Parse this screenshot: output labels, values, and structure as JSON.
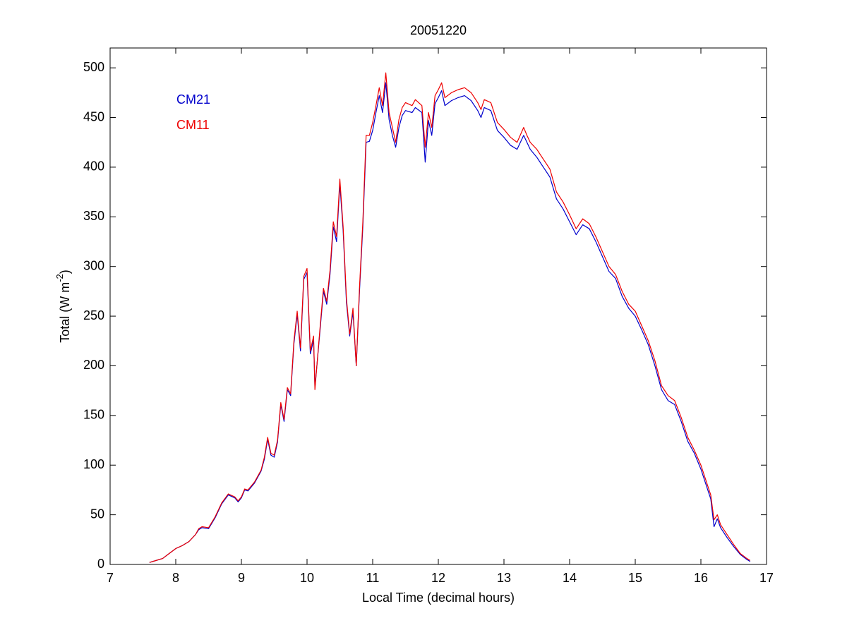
{
  "chart_data": {
    "type": "line",
    "title": "20051220",
    "xlabel": "Local Time (decimal hours)",
    "ylabel": [
      "Total (W m",
      "-2",
      ")"
    ],
    "x": [
      7.6,
      7.7,
      7.8,
      7.9,
      8.0,
      8.1,
      8.2,
      8.3,
      8.35,
      8.4,
      8.5,
      8.6,
      8.7,
      8.8,
      8.9,
      8.95,
      9.0,
      9.05,
      9.1,
      9.2,
      9.3,
      9.35,
      9.4,
      9.45,
      9.5,
      9.55,
      9.6,
      9.65,
      9.7,
      9.75,
      9.8,
      9.85,
      9.9,
      9.95,
      10.0,
      10.05,
      10.1,
      10.12,
      10.2,
      10.25,
      10.3,
      10.35,
      10.4,
      10.45,
      10.5,
      10.55,
      10.6,
      10.65,
      10.7,
      10.75,
      10.8,
      10.85,
      10.9,
      10.95,
      11.0,
      11.05,
      11.1,
      11.15,
      11.2,
      11.25,
      11.3,
      11.35,
      11.4,
      11.45,
      11.5,
      11.6,
      11.65,
      11.75,
      11.8,
      11.85,
      11.9,
      11.95,
      12.0,
      12.05,
      12.1,
      12.2,
      12.3,
      12.4,
      12.5,
      12.6,
      12.65,
      12.7,
      12.8,
      12.9,
      13.0,
      13.1,
      13.2,
      13.3,
      13.35,
      13.4,
      13.5,
      13.6,
      13.7,
      13.8,
      13.9,
      14.0,
      14.1,
      14.2,
      14.3,
      14.4,
      14.5,
      14.6,
      14.7,
      14.8,
      14.9,
      15.0,
      15.1,
      15.2,
      15.3,
      15.4,
      15.5,
      15.6,
      15.7,
      15.8,
      15.9,
      16.0,
      16.1,
      16.15,
      16.2,
      16.25,
      16.3,
      16.4,
      16.5,
      16.6,
      16.7,
      16.75
    ],
    "series": [
      {
        "name": "CM21",
        "color": "#0000cc",
        "values": [
          2,
          4,
          6,
          11,
          16,
          19,
          23,
          30,
          35,
          37,
          36,
          47,
          61,
          70,
          67,
          63,
          67,
          75,
          74,
          82,
          94,
          106,
          126,
          110,
          108,
          123,
          161,
          144,
          176,
          170,
          222,
          252,
          215,
          287,
          294,
          212,
          226,
          178,
          237,
          275,
          262,
          292,
          340,
          325,
          383,
          336,
          264,
          230,
          254,
          200,
          276,
          340,
          425,
          426,
          437,
          455,
          472,
          455,
          485,
          448,
          432,
          420,
          440,
          452,
          457,
          455,
          460,
          455,
          405,
          447,
          432,
          464,
          470,
          477,
          462,
          467,
          470,
          472,
          467,
          457,
          450,
          460,
          457,
          437,
          430,
          422,
          418,
          432,
          425,
          418,
          410,
          400,
          390,
          368,
          358,
          345,
          332,
          342,
          338,
          325,
          310,
          295,
          288,
          270,
          258,
          250,
          236,
          221,
          200,
          176,
          165,
          161,
          144,
          124,
          112,
          96,
          76,
          66,
          38,
          46,
          37,
          27,
          18,
          10,
          5,
          3
        ]
      },
      {
        "name": "CM11",
        "color": "#ee0000",
        "values": [
          2,
          4,
          6,
          11,
          16,
          19,
          23,
          30,
          36,
          38,
          37,
          48,
          62,
          71,
          68,
          64,
          68,
          76,
          75,
          83,
          95,
          108,
          128,
          112,
          110,
          125,
          163,
          146,
          178,
          172,
          225,
          255,
          218,
          290,
          298,
          215,
          230,
          176,
          240,
          278,
          265,
          296,
          345,
          330,
          388,
          340,
          268,
          232,
          258,
          200,
          280,
          345,
          432,
          432,
          445,
          462,
          480,
          462,
          495,
          455,
          440,
          425,
          448,
          460,
          465,
          462,
          468,
          462,
          420,
          455,
          440,
          472,
          478,
          485,
          470,
          475,
          478,
          480,
          475,
          465,
          458,
          468,
          465,
          445,
          438,
          430,
          425,
          440,
          432,
          425,
          418,
          408,
          398,
          375,
          365,
          352,
          338,
          348,
          343,
          330,
          315,
          300,
          292,
          275,
          262,
          255,
          240,
          225,
          205,
          180,
          170,
          165,
          148,
          128,
          115,
          100,
          80,
          70,
          45,
          50,
          40,
          30,
          20,
          11,
          6,
          4
        ]
      }
    ],
    "xlim": [
      7,
      17
    ],
    "ylim": [
      0,
      520
    ],
    "xticks": [
      7,
      8,
      9,
      10,
      11,
      12,
      13,
      14,
      15,
      16,
      17
    ],
    "yticks": [
      0,
      50,
      100,
      150,
      200,
      250,
      300,
      350,
      400,
      450,
      500
    ],
    "grid": false
  }
}
